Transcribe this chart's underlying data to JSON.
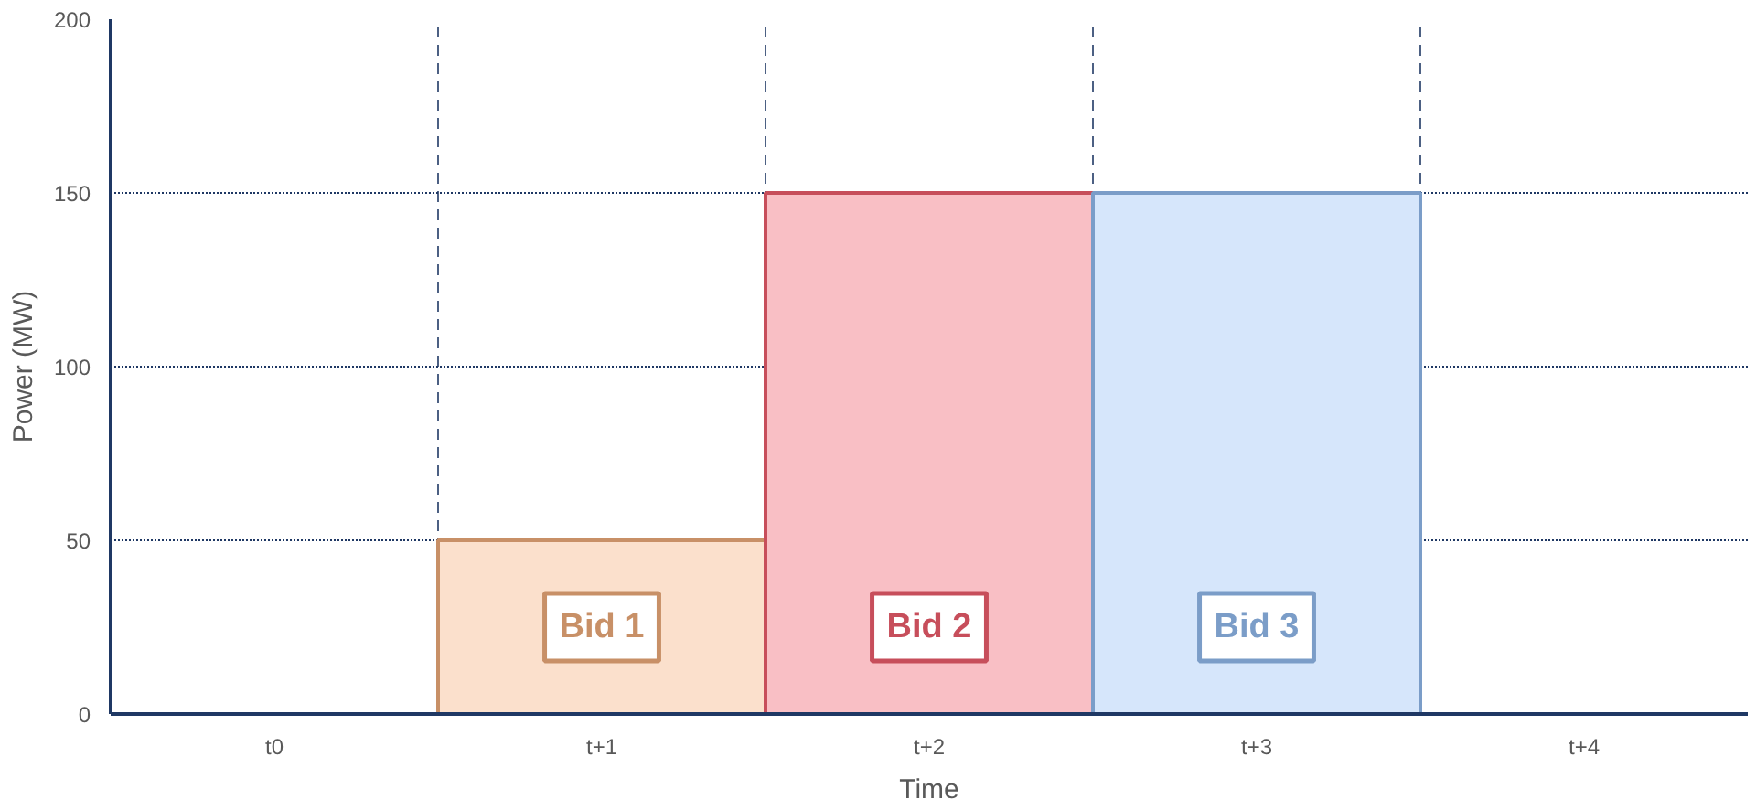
{
  "chart_data": {
    "type": "bar",
    "xlabel": "Time",
    "ylabel": "Power (MW)",
    "categories": [
      "t0",
      "t+1",
      "t+2",
      "t+3",
      "t+4"
    ],
    "values": [
      0,
      50,
      150,
      150,
      0
    ],
    "colors": [
      "#fbe0cc",
      "#fbe0cc",
      "#f9bfc5",
      "#d6e6fb",
      "#d6e6fb"
    ],
    "ylim": [
      0,
      200
    ],
    "yticks": [
      0,
      50,
      100,
      150,
      200
    ],
    "grid": true,
    "annotations": [
      "Bid 1",
      "Bid 2",
      "Bid 3"
    ]
  }
}
